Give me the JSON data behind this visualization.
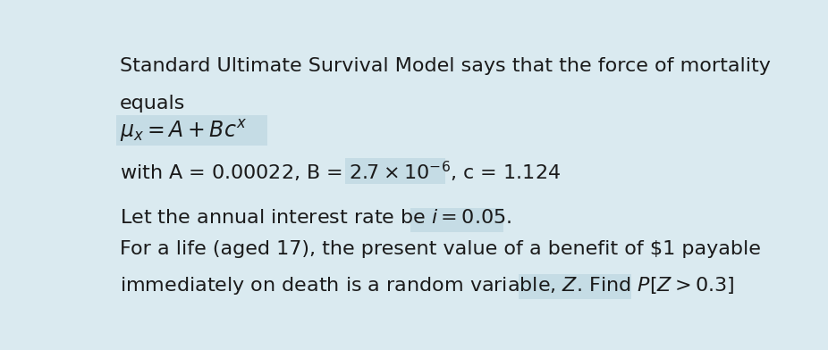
{
  "background_color": "#daeaf0",
  "text_color": "#1a1a1a",
  "fig_width": 9.26,
  "fig_height": 3.92,
  "line1": "Standard Ultimate Survival Model says that the force of mortality",
  "line2": "equals",
  "line3_math": "$\\mu_x = A + Bc^x$",
  "line4": "with A = 0.00022, B = $2.7 \\times 10^{-6}$, c = 1.124",
  "line5": "Let the annual interest rate be $i = 0.05$.",
  "line6": "For a life (aged 17), the present value of a benefit of $1 payable",
  "line7": "immediately on death is a random variable, $Z$. Find $P[Z > 0.3]$",
  "highlight_color": "#c5dce5",
  "font_size": 16.0,
  "math_font_size": 17.0
}
